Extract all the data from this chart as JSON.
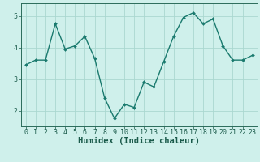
{
  "x": [
    0,
    1,
    2,
    3,
    4,
    5,
    6,
    7,
    8,
    9,
    10,
    11,
    12,
    13,
    14,
    15,
    16,
    17,
    18,
    19,
    20,
    21,
    22,
    23
  ],
  "y": [
    3.45,
    3.6,
    3.6,
    4.75,
    3.95,
    4.05,
    4.35,
    3.65,
    2.4,
    1.75,
    2.2,
    2.1,
    2.9,
    2.75,
    3.55,
    4.35,
    4.95,
    5.1,
    4.75,
    4.9,
    4.05,
    3.6,
    3.6,
    3.75
  ],
  "line_color": "#1a7a6e",
  "marker": "D",
  "marker_size": 2.0,
  "linewidth": 1.0,
  "background_color": "#cff0eb",
  "grid_color": "#aad8d0",
  "xlabel": "Humidex (Indice chaleur)",
  "xlim": [
    -0.5,
    23.5
  ],
  "ylim": [
    1.5,
    5.4
  ],
  "yticks": [
    2,
    3,
    4,
    5
  ],
  "xticks": [
    0,
    1,
    2,
    3,
    4,
    5,
    6,
    7,
    8,
    9,
    10,
    11,
    12,
    13,
    14,
    15,
    16,
    17,
    18,
    19,
    20,
    21,
    22,
    23
  ],
  "tick_label_fontsize": 6.0,
  "xlabel_fontsize": 7.5,
  "axis_color": "#2a6b5a",
  "tick_color": "#1a5a4a"
}
